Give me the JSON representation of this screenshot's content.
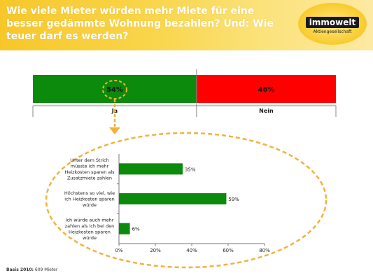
{
  "header": {
    "title": "Wie viele Mieter würden mehr Miete für eine besser gedämmte Wohnung bezahlen? Und: Wie teuer darf es werden?",
    "logo_text": "immowelt",
    "logo_subtext": "Aktiengesellschaft"
  },
  "footer": {
    "basis_label": "Basis 2010:",
    "basis_value": " 609 Mieter"
  },
  "colors": {
    "green": "#0b8a0b",
    "red": "#ff0000",
    "header_yellow": "#f8c92c",
    "dashed_orange": "#f2b23a"
  },
  "chart_data": [
    {
      "type": "bar",
      "orientation": "horizontal-stacked",
      "categories": [
        "Ja",
        "Nein"
      ],
      "values": [
        54,
        46
      ],
      "value_labels": [
        "54%",
        "46%"
      ],
      "colors": [
        "#0b8a0b",
        "#ff0000"
      ]
    },
    {
      "type": "bar",
      "orientation": "horizontal",
      "categories": [
        "Unter dem Strich müsste ich mehr Heizkosten sparen als Zusatzmiete zahlen",
        "Höchstens so viel, wie ich Heizkosten sparen würde",
        "Ich würde auch mehr zahlen als ich bei den Heizkosten sparen würde"
      ],
      "category_lines": [
        [
          "Unter dem Strich",
          "müsste ich mehr",
          "Heizkosten sparen als",
          "Zusatzmiete zahlen"
        ],
        [
          "Höchstens so viel, wie",
          "ich Heizkosten sparen",
          "würde"
        ],
        [
          "Ich würde auch mehr",
          "zahlen als ich bei den",
          "Heizkosten sparen",
          "würde"
        ]
      ],
      "values": [
        35,
        59,
        6
      ],
      "value_labels": [
        "35%",
        "59%",
        "6%"
      ],
      "xlim": [
        0,
        80
      ],
      "xticks": [
        0,
        20,
        40,
        60,
        80
      ],
      "xtick_labels": [
        "0%",
        "20%",
        "40%",
        "60%",
        "80%"
      ],
      "color": "#0b8a0b"
    }
  ]
}
